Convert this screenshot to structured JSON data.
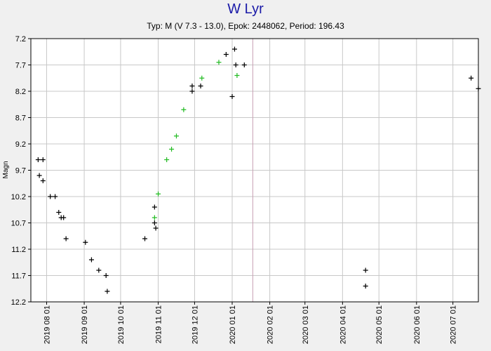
{
  "header": {
    "title": "W Lyr",
    "subtitle": "Typ: M (V 7.3 - 13.0), Epok: 2448062, Period: 196.43"
  },
  "colors": {
    "background": "#f0f0f0",
    "plot_background": "#ffffff",
    "grid": "#c8c8c8",
    "marker_line": "#c8a0b4",
    "series_black": "#000000",
    "series_green": "#22bb22",
    "title": "#1a1aa8"
  },
  "chart_data": {
    "type": "scatter",
    "title": "W Lyr",
    "subtitle": "Typ: M (V 7.3 - 13.0), Epok: 2448062, Period: 196.43",
    "xlabel": "",
    "ylabel": "Magn",
    "x_type": "date",
    "xlim": [
      "2019-07-19",
      "2020-07-22"
    ],
    "ylim": [
      12.2,
      7.2
    ],
    "y_inverted": true,
    "y_ticks": [
      7.2,
      7.7,
      8.2,
      8.7,
      9.2,
      9.7,
      10.2,
      10.7,
      11.2,
      11.7,
      12.2
    ],
    "x_ticks": [
      "2019 08 01",
      "2019 09 01",
      "2019 10 01",
      "2019 11 01",
      "2019 12 01",
      "2020 01 01",
      "2020 02 01",
      "2020 03 01",
      "2020 04 01",
      "2020 05 01",
      "2020 06 01",
      "2020 07 01"
    ],
    "grid": true,
    "marker": "+",
    "vertical_marker": "2020-01-18",
    "series": [
      {
        "color": "#000000",
        "points": [
          [
            "2019-07-25",
            9.5
          ],
          [
            "2019-07-26",
            9.8
          ],
          [
            "2019-07-29",
            9.9
          ],
          [
            "2019-07-29",
            9.5
          ],
          [
            "2019-08-04",
            10.2
          ],
          [
            "2019-08-08",
            10.2
          ],
          [
            "2019-08-11",
            10.5
          ],
          [
            "2019-08-13",
            10.6
          ],
          [
            "2019-08-15",
            10.6
          ],
          [
            "2019-08-17",
            11.0
          ],
          [
            "2019-09-02",
            11.07
          ],
          [
            "2019-09-07",
            11.4
          ],
          [
            "2019-09-13",
            11.6
          ],
          [
            "2019-09-19",
            11.7
          ],
          [
            "2019-09-20",
            12.0
          ],
          [
            "2019-10-21",
            11.0
          ],
          [
            "2019-10-29",
            10.4
          ],
          [
            "2019-10-29",
            10.7
          ],
          [
            "2019-10-30",
            10.8
          ],
          [
            "2019-11-29",
            8.1
          ],
          [
            "2019-11-29",
            8.2
          ],
          [
            "2019-12-06",
            8.1
          ],
          [
            "2019-12-27",
            7.5
          ],
          [
            "2020-01-01",
            8.3
          ],
          [
            "2020-01-03",
            7.4
          ],
          [
            "2020-01-04",
            7.7
          ],
          [
            "2020-01-11",
            7.7
          ],
          [
            "2020-04-20",
            11.6
          ],
          [
            "2020-04-20",
            11.9
          ],
          [
            "2020-07-16",
            7.95
          ],
          [
            "2020-07-22",
            8.15
          ]
        ]
      },
      {
        "color": "#22bb22",
        "points": [
          [
            "2019-10-29",
            10.6
          ],
          [
            "2019-11-01",
            10.15
          ],
          [
            "2019-11-08",
            9.5
          ],
          [
            "2019-11-12",
            9.3
          ],
          [
            "2019-11-16",
            9.05
          ],
          [
            "2019-11-22",
            8.55
          ],
          [
            "2019-12-07",
            7.95
          ],
          [
            "2019-12-21",
            7.65
          ],
          [
            "2020-01-05",
            7.9
          ]
        ]
      }
    ]
  }
}
